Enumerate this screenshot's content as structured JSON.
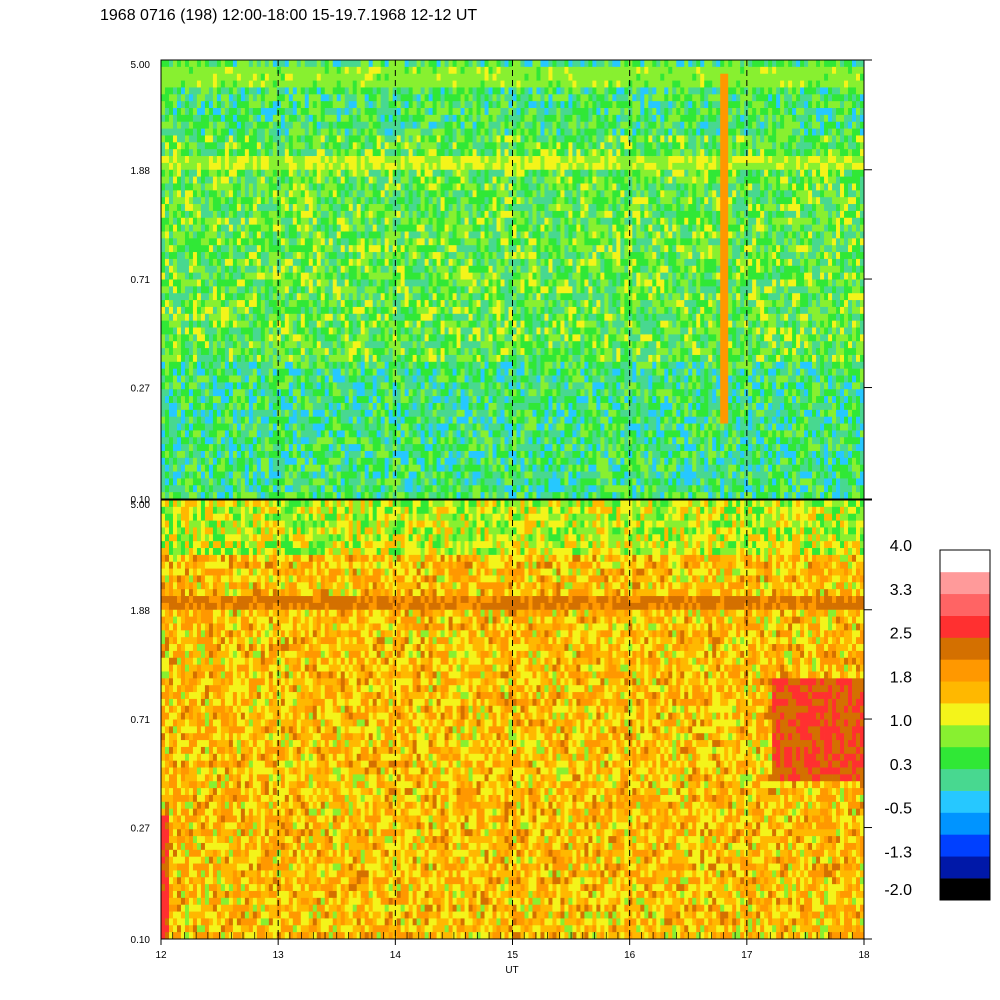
{
  "title": "1968 0716 (198) 12:00-18:00 15-19.7.1968  12-12 UT",
  "colors": {
    "scale": [
      "#000000",
      "#0018a8",
      "#0040ff",
      "#0094ff",
      "#26c8ff",
      "#48d890",
      "#30e836",
      "#88f030",
      "#f4f41a",
      "#ffb800",
      "#ff9800",
      "#d47000",
      "#ff3030",
      "#ff6464",
      "#ff9a9a",
      "#ffffff"
    ]
  },
  "chart_data": [
    {
      "type": "heatmap",
      "panel": "top",
      "x": [
        12,
        18
      ],
      "xticks": [
        "12",
        "13",
        "14",
        "15",
        "16",
        "17",
        "18"
      ],
      "ylim": [
        0.1,
        5.0
      ],
      "yscale": "log",
      "yticks": [
        "5.00",
        "1.88",
        "0.71",
        "0.27",
        "0.10"
      ],
      "dashed_vlines": [
        13,
        14,
        15,
        16,
        17
      ],
      "features": [
        {
          "kind": "band",
          "y": 2.0,
          "level": 1.0
        },
        {
          "kind": "band",
          "y": 4.4,
          "level": 0.8
        },
        {
          "kind": "streak",
          "x": 16.8,
          "y": [
            0.2,
            4.5
          ],
          "level": 1.8
        }
      ],
      "background_level": 0.5
    },
    {
      "type": "heatmap",
      "panel": "bottom",
      "x": [
        12,
        18
      ],
      "xticks": [
        "12",
        "13",
        "14",
        "15",
        "16",
        "17",
        "18"
      ],
      "xlabel": "UT",
      "ylim": [
        0.1,
        5.0
      ],
      "yscale": "log",
      "yticks": [
        "5.00",
        "1.88",
        "0.71",
        "0.27",
        "0.10"
      ],
      "dashed_vlines": [
        13,
        14,
        15,
        16,
        17
      ],
      "features": [
        {
          "kind": "band",
          "y": 2.0,
          "level": 2.3
        },
        {
          "kind": "patch",
          "x": [
            17.2,
            18.0
          ],
          "y": [
            0.4,
            1.0
          ],
          "level": 2.6
        },
        {
          "kind": "patch",
          "x": [
            12.0,
            12.08
          ],
          "y": [
            0.1,
            0.3
          ],
          "level": 2.7
        }
      ],
      "background_level": 1.6
    },
    {
      "type": "colorbar",
      "ticks": [
        "4.0",
        "3.3",
        "2.5",
        "1.8",
        "1.0",
        "0.3",
        "-0.5",
        "-1.3",
        "-2.0"
      ],
      "range": [
        -2.0,
        4.0
      ]
    }
  ]
}
